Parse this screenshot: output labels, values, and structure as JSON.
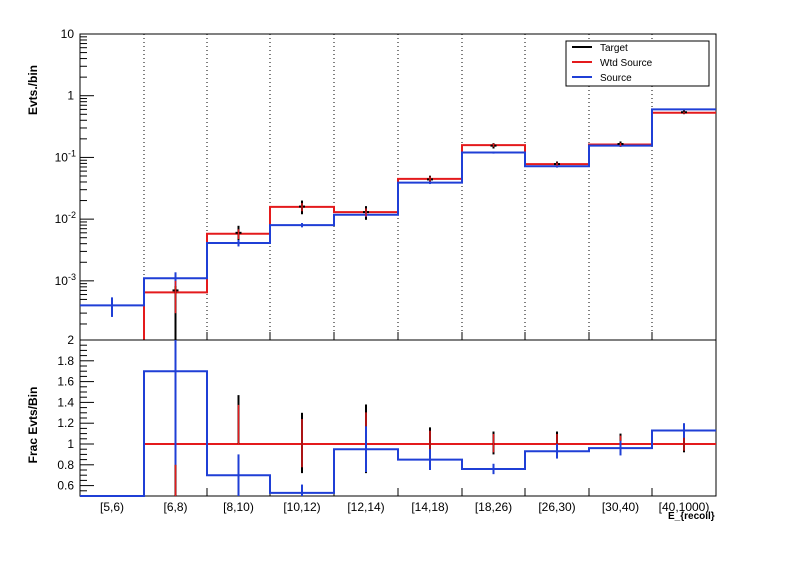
{
  "colors": {
    "target": "#000000",
    "wtd_source": "#e41a1c",
    "source": "#1f3fd6"
  },
  "legend": {
    "position": "top-right",
    "entries": [
      {
        "label": "Target",
        "color": "#000000"
      },
      {
        "label": "Wtd Source",
        "color": "#e41a1c"
      },
      {
        "label": "Source",
        "color": "#1f3fd6"
      }
    ]
  },
  "chart_data": [
    {
      "type": "line",
      "panel": "top",
      "ylabel": "Evts./bin",
      "yscale": "log",
      "ylim": [
        0.00011,
        10
      ],
      "ytick_labels": [
        "10",
        "1",
        "10^-1",
        "10^-2",
        "10^-3"
      ],
      "categories": [
        "[5,6)",
        "[6,8)",
        "[8,10)",
        "[10,12)",
        "[12,14)",
        "[14,18)",
        "[18,26)",
        "[26,30)",
        "[30,40)",
        "[40,1000)"
      ],
      "series": [
        {
          "name": "Target",
          "values": [
            null,
            0.0007,
            0.006,
            0.016,
            0.013,
            0.044,
            0.155,
            0.078,
            0.165,
            0.54
          ]
        },
        {
          "name": "Wtd Source",
          "values": [
            null,
            0.00065,
            0.0058,
            0.0158,
            0.013,
            0.045,
            0.158,
            0.078,
            0.162,
            0.53
          ]
        },
        {
          "name": "Source",
          "values": [
            0.0004,
            0.0011,
            0.0041,
            0.008,
            0.0118,
            0.039,
            0.12,
            0.072,
            0.155,
            0.6
          ]
        }
      ],
      "grid": "vertical dotted at bin edges"
    },
    {
      "type": "line",
      "panel": "bottom",
      "ylabel": "Frac Evts/Bin",
      "ylim": [
        0.5,
        2
      ],
      "ytick_labels": [
        "0.6",
        "0.8",
        "1",
        "1.2",
        "1.4",
        "1.6",
        "1.8",
        "2"
      ],
      "xlabel": "E_{recoil}",
      "categories": [
        "[5,6)",
        "[6,8)",
        "[8,10)",
        "[10,12)",
        "[12,14)",
        "[14,18)",
        "[18,26)",
        "[26,30)",
        "[30,40)",
        "[40,1000)"
      ],
      "series": [
        {
          "name": "Target",
          "values": [
            null,
            1.0,
            1.0,
            1.0,
            1.0,
            1.0,
            1.0,
            1.0,
            1.0,
            1.0
          ]
        },
        {
          "name": "Wtd Source",
          "values": [
            null,
            1.0,
            1.0,
            1.0,
            1.0,
            1.0,
            1.0,
            1.0,
            1.0,
            1.0
          ]
        },
        {
          "name": "Source",
          "values": [
            0.5,
            1.7,
            0.7,
            0.53,
            0.95,
            0.85,
            0.76,
            0.93,
            0.96,
            1.13
          ]
        }
      ]
    }
  ]
}
